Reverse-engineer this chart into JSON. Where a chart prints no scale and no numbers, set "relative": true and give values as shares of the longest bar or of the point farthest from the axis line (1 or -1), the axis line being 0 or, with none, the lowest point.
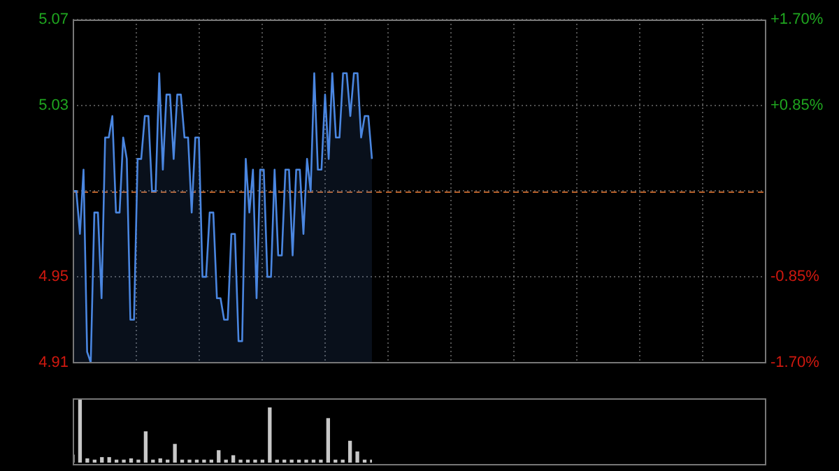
{
  "chart_data": [
    {
      "type": "area",
      "categories": [
        null,
        null,
        null,
        null,
        null,
        null,
        null,
        null,
        null,
        null,
        null,
        null,
        null,
        null,
        null,
        null,
        null,
        null,
        null,
        null,
        null,
        null,
        null,
        null,
        null,
        null,
        null,
        null,
        null,
        null,
        null,
        null,
        null,
        null,
        null,
        null,
        null,
        null,
        null,
        null,
        null,
        null,
        null,
        null,
        null,
        null,
        null,
        null,
        null,
        null,
        null,
        null,
        null,
        null,
        null,
        null,
        null,
        null,
        null,
        null,
        null,
        null,
        null,
        null,
        null,
        null,
        null,
        null,
        null,
        null,
        null,
        null,
        null,
        null,
        null,
        null,
        null,
        null,
        null,
        null,
        null,
        null,
        null,
        null,
        null,
        null,
        null,
        null,
        null,
        null,
        null,
        null,
        null,
        null,
        null,
        null,
        null,
        null,
        null,
        null,
        null,
        null,
        null,
        null,
        null,
        null,
        null,
        null,
        null,
        null,
        null,
        null,
        null,
        null,
        null,
        null,
        null,
        null,
        null,
        null,
        null,
        null,
        null,
        null,
        null,
        null,
        null,
        null,
        null,
        null,
        null,
        null,
        null,
        null,
        null,
        null,
        null,
        null,
        null,
        null,
        null,
        null,
        null,
        null,
        null,
        null,
        null,
        null,
        null,
        null,
        null,
        null,
        null,
        null,
        null,
        null,
        null,
        null,
        null,
        null,
        null,
        null,
        null,
        null,
        null,
        null,
        null,
        null,
        null,
        null,
        null,
        null,
        null,
        null,
        null,
        null,
        null,
        null,
        null,
        null,
        null,
        null,
        null,
        null,
        null,
        null,
        null,
        null,
        null,
        null,
        null,
        null,
        null
      ],
      "series": [
        {
          "color": "#4a86e0",
          "values": [
            4.99,
            4.99,
            4.97,
            5.0,
            4.915,
            4.91,
            4.98,
            4.98,
            4.94,
            5.015,
            5.015,
            5.025,
            4.98,
            4.98,
            5.015,
            5.005,
            4.93,
            4.93,
            5.005,
            5.005,
            5.025,
            5.025,
            4.99,
            4.99,
            5.045,
            5.0,
            5.035,
            5.035,
            5.005,
            5.035,
            5.035,
            5.015,
            5.015,
            4.98,
            5.015,
            5.015,
            4.95,
            4.95,
            4.98,
            4.98,
            4.94,
            4.94,
            4.93,
            4.93,
            4.97,
            4.97,
            4.92,
            4.92,
            5.005,
            4.98,
            5.0,
            4.94,
            5.0,
            5.0,
            4.95,
            4.95,
            5.0,
            4.96,
            4.96,
            5.0,
            5.0,
            4.96,
            5.0,
            5.0,
            4.97,
            5.005,
            4.99,
            5.045,
            5.0,
            5.0,
            5.035,
            5.005,
            5.045,
            5.015,
            5.015,
            5.045,
            5.045,
            5.025,
            5.045,
            5.045,
            5.015,
            5.025,
            5.025,
            5.005,
            null,
            null,
            null,
            null,
            null,
            null,
            null,
            null,
            null,
            null,
            null,
            null,
            null,
            null,
            null,
            null,
            null,
            null,
            null,
            null,
            null,
            null,
            null,
            null,
            null,
            null,
            null,
            null,
            null,
            null,
            null,
            null,
            null,
            null,
            null,
            null,
            null,
            null,
            null,
            null,
            null,
            null,
            null,
            null,
            null,
            null,
            null,
            null,
            null,
            null,
            null,
            null,
            null,
            null,
            null,
            null,
            null,
            null,
            null,
            null,
            null,
            null,
            null,
            null,
            null,
            null,
            null,
            null,
            null,
            null,
            null,
            null,
            null,
            null,
            null,
            null,
            null,
            null,
            null,
            null,
            null,
            null,
            null,
            null,
            null,
            null,
            null,
            null,
            null,
            null,
            null,
            null,
            null,
            null,
            null,
            null,
            null,
            null,
            null,
            null,
            null,
            null,
            null,
            null,
            null,
            null,
            null,
            null,
            null
          ]
        }
      ],
      "ylim": [
        4.91,
        5.07
      ],
      "yticks": [
        4.91,
        4.95,
        {
          "value": 4.99,
          "label": null
        },
        5.03,
        5.07
      ],
      "y2lim": [
        -1.7,
        1.7
      ],
      "y2ticks": [
        {
          "value": -1.7,
          "label": "-1.70%"
        },
        {
          "value": -0.85,
          "label": "-0.85%"
        },
        {
          "value": 0,
          "label": null
        },
        {
          "value": 0.85,
          "label": "+0.85%"
        },
        {
          "value": 1.7,
          "label": "+1.70%"
        }
      ],
      "ref_lines": [
        {
          "axis": "y",
          "value": 4.99,
          "color": "#b8612a",
          "line_style": "dashed"
        }
      ],
      "grid": true,
      "tick_labels": "y"
    },
    {
      "type": "bar",
      "relative": true,
      "categories": [
        null,
        null,
        null,
        null,
        null,
        null,
        null,
        null,
        null,
        null,
        null,
        null,
        null,
        null,
        null,
        null,
        null,
        null,
        null,
        null,
        null,
        null,
        null,
        null,
        null,
        null,
        null,
        null,
        null,
        null,
        null,
        null,
        null,
        null,
        null,
        null,
        null,
        null,
        null,
        null,
        null,
        null
      ],
      "series": [
        {
          "color": "#c8c8c8",
          "values": [
            0.12,
            1.0,
            0.06,
            0.04,
            0.08,
            0.08,
            0.04,
            0.04,
            0.06,
            0.04,
            0.49,
            0.04,
            0.06,
            0.04,
            0.29,
            0.04,
            0.04,
            0.04,
            0.04,
            0.04,
            0.19,
            0.04,
            0.11,
            0.04,
            0.04,
            0.04,
            0.04,
            0.87,
            0.04,
            0.04,
            0.04,
            0.04,
            0.04,
            0.04,
            0.04,
            0.7,
            0.04,
            0.04,
            0.34,
            0.17,
            0.04,
            0.04
          ]
        }
      ],
      "tick_labels": false
    }
  ]
}
